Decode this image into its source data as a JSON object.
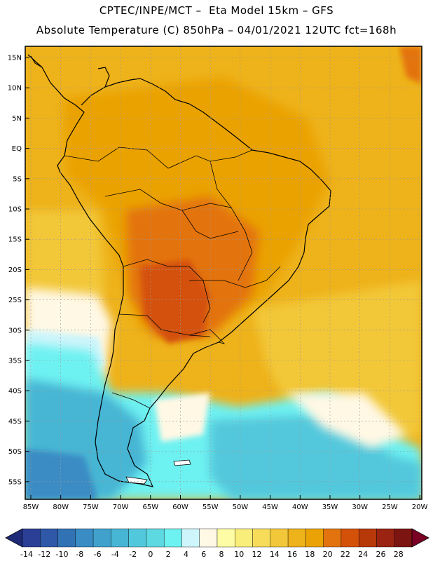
{
  "header": {
    "line1": "CPTEC/INPE/MCT –  Eta Model 15km – GFS",
    "line2": "Absolute Temperature (C) 850hPa – 04/01/2021 12UTC fct=168h"
  },
  "map": {
    "lat_labels": [
      "15N",
      "10N",
      "5N",
      "EQ",
      "5S",
      "10S",
      "15S",
      "20S",
      "25S",
      "30S",
      "35S",
      "40S",
      "45S",
      "50S",
      "55S"
    ],
    "lon_labels": [
      "85W",
      "80W",
      "75W",
      "70W",
      "65W",
      "60W",
      "55W",
      "50W",
      "45W",
      "40W",
      "35W",
      "30W",
      "25W",
      "20W"
    ]
  },
  "colorbar": {
    "labels": [
      "-14",
      "-12",
      "-10",
      "-8",
      "-6",
      "-4",
      "-2",
      "0",
      "2",
      "4",
      "6",
      "8",
      "10",
      "12",
      "14",
      "16",
      "18",
      "20",
      "22",
      "24",
      "26",
      "28"
    ],
    "colors": [
      "#2b3f96",
      "#2f58a8",
      "#3172b4",
      "#3a8cc4",
      "#40a2cc",
      "#47b5d4",
      "#52c8dc",
      "#5dd9e2",
      "#6ef1f1",
      "#cdf5fb",
      "#fff8e4",
      "#fefca4",
      "#faee7a",
      "#f6dc59",
      "#f2c739",
      "#eeb21a",
      "#eaa205",
      "#e3730e",
      "#d4510a",
      "#b73808",
      "#9a2312",
      "#7c1412"
    ],
    "under_color": "#1e2a78",
    "over_color": "#7a0024"
  }
}
